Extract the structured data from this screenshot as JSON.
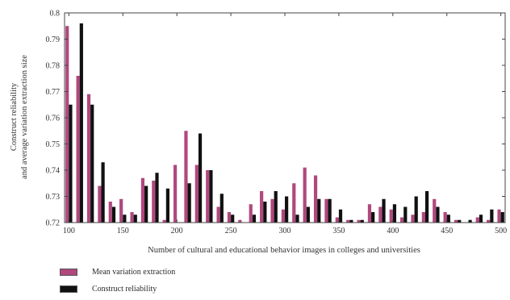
{
  "chart_data": {
    "type": "bar",
    "title": "",
    "xlabel": "Number of cultural and educational behavior images in colleges and universities",
    "ylabel_lines": [
      "Construct reliability",
      "and average variation extraction size"
    ],
    "xlim": [
      96,
      504
    ],
    "ylim": [
      0.72,
      0.8
    ],
    "x_ticks": [
      100,
      150,
      200,
      250,
      300,
      350,
      400,
      450,
      500
    ],
    "y_ticks": [
      "0.72",
      "0.73",
      "0.74",
      "0.75",
      "0.76",
      "0.77",
      "0.78",
      "0.79",
      "0.8"
    ],
    "x": [
      100,
      110,
      120,
      130,
      140,
      150,
      160,
      170,
      180,
      190,
      200,
      210,
      220,
      230,
      240,
      250,
      260,
      270,
      280,
      290,
      300,
      310,
      320,
      330,
      340,
      350,
      360,
      370,
      380,
      390,
      400,
      410,
      420,
      430,
      440,
      450,
      460,
      470,
      480,
      490,
      500
    ],
    "series": [
      {
        "name": "Mean variation extraction",
        "color": "#b0487e",
        "values": [
          0.795,
          0.776,
          0.769,
          0.734,
          0.728,
          0.729,
          0.724,
          0.737,
          0.736,
          0.721,
          0.742,
          0.755,
          0.742,
          0.74,
          0.726,
          0.724,
          0.721,
          0.727,
          0.732,
          0.729,
          0.725,
          0.735,
          0.741,
          0.738,
          0.729,
          0.722,
          0.721,
          0.721,
          0.727,
          0.726,
          0.725,
          0.722,
          0.723,
          0.724,
          0.729,
          0.724,
          0.721,
          0.72,
          0.722,
          0.721,
          0.725
        ]
      },
      {
        "name": "Construct reliability",
        "color": "#111111",
        "values": [
          0.765,
          0.796,
          0.765,
          0.743,
          0.726,
          0.723,
          0.723,
          0.734,
          0.739,
          0.733,
          0.72,
          0.735,
          0.754,
          0.74,
          0.731,
          0.723,
          0.72,
          0.723,
          0.728,
          0.732,
          0.73,
          0.723,
          0.726,
          0.729,
          0.729,
          0.725,
          0.721,
          0.721,
          0.724,
          0.729,
          0.727,
          0.726,
          0.73,
          0.732,
          0.726,
          0.723,
          0.721,
          0.721,
          0.723,
          0.725,
          0.724
        ]
      }
    ],
    "legend_position": "bottom-left",
    "grid": false
  }
}
